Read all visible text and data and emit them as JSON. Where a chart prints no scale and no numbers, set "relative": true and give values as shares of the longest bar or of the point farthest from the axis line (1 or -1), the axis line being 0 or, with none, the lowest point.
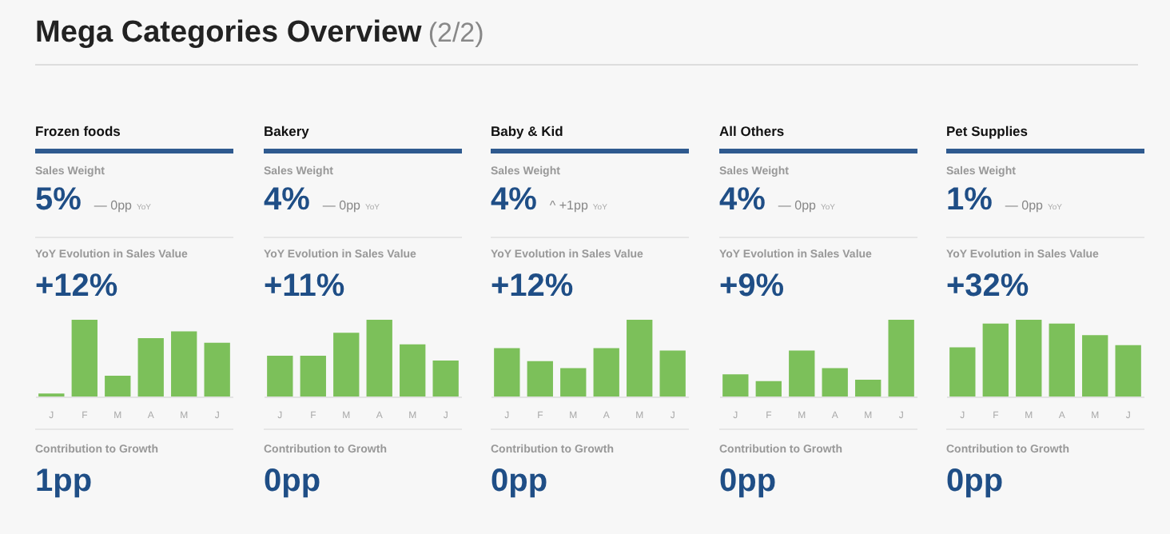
{
  "chart_data": [
    {
      "type": "other",
      "title": "Mega Categories Overview",
      "subtitle": "(2/2)"
    },
    {
      "type": "bar",
      "title": "Frozen foods",
      "relative": true,
      "categories": [
        "J",
        "F",
        "M",
        "A",
        "M",
        "J"
      ],
      "values": [
        0.04,
        1,
        0.27,
        0.76,
        0.85,
        0.7
      ],
      "color": "#7cc05a",
      "annotations": [
        "Sales Weight",
        "5%",
        "— 0pp",
        "YoY",
        "YoY Evolution in Sales Value",
        "+12%",
        "Contribution to Growth",
        "1pp"
      ]
    },
    {
      "type": "bar",
      "title": "Bakery",
      "relative": true,
      "categories": [
        "J",
        "F",
        "M",
        "A",
        "M",
        "J"
      ],
      "values": [
        0.53,
        0.53,
        0.83,
        1,
        0.68,
        0.47
      ],
      "color": "#7cc05a",
      "annotations": [
        "Sales Weight",
        "4%",
        "— 0pp",
        "YoY",
        "YoY Evolution in Sales Value",
        "+11%",
        "Contribution to Growth",
        "0pp"
      ]
    },
    {
      "type": "bar",
      "title": "Baby & Kid",
      "relative": true,
      "categories": [
        "J",
        "F",
        "M",
        "A",
        "M",
        "J"
      ],
      "values": [
        0.63,
        0.46,
        0.37,
        0.63,
        1,
        0.6
      ],
      "color": "#7cc05a",
      "annotations": [
        "Sales Weight",
        "4%",
        "^ +1pp",
        "YoY",
        "YoY Evolution in Sales Value",
        "+12%",
        "Contribution to Growth",
        "0pp"
      ]
    },
    {
      "type": "bar",
      "title": "All Others",
      "relative": true,
      "categories": [
        "J",
        "F",
        "M",
        "A",
        "M",
        "J"
      ],
      "values": [
        0.29,
        0.2,
        0.6,
        0.37,
        0.22,
        1
      ],
      "color": "#7cc05a",
      "annotations": [
        "Sales Weight",
        "4%",
        "— 0pp",
        "YoY",
        "YoY Evolution in Sales Value",
        "+9%",
        "Contribution to Growth",
        "0pp"
      ]
    },
    {
      "type": "bar",
      "title": "Pet Supplies",
      "relative": true,
      "categories": [
        "J",
        "F",
        "M",
        "A",
        "M",
        "J"
      ],
      "values": [
        0.64,
        0.95,
        1,
        0.95,
        0.8,
        0.67
      ],
      "color": "#7cc05a",
      "annotations": [
        "Sales Weight",
        "1%",
        "— 0pp",
        "YoY",
        "YoY Evolution in Sales Value",
        "+32%",
        "Contribution to Growth",
        "0pp"
      ]
    }
  ]
}
